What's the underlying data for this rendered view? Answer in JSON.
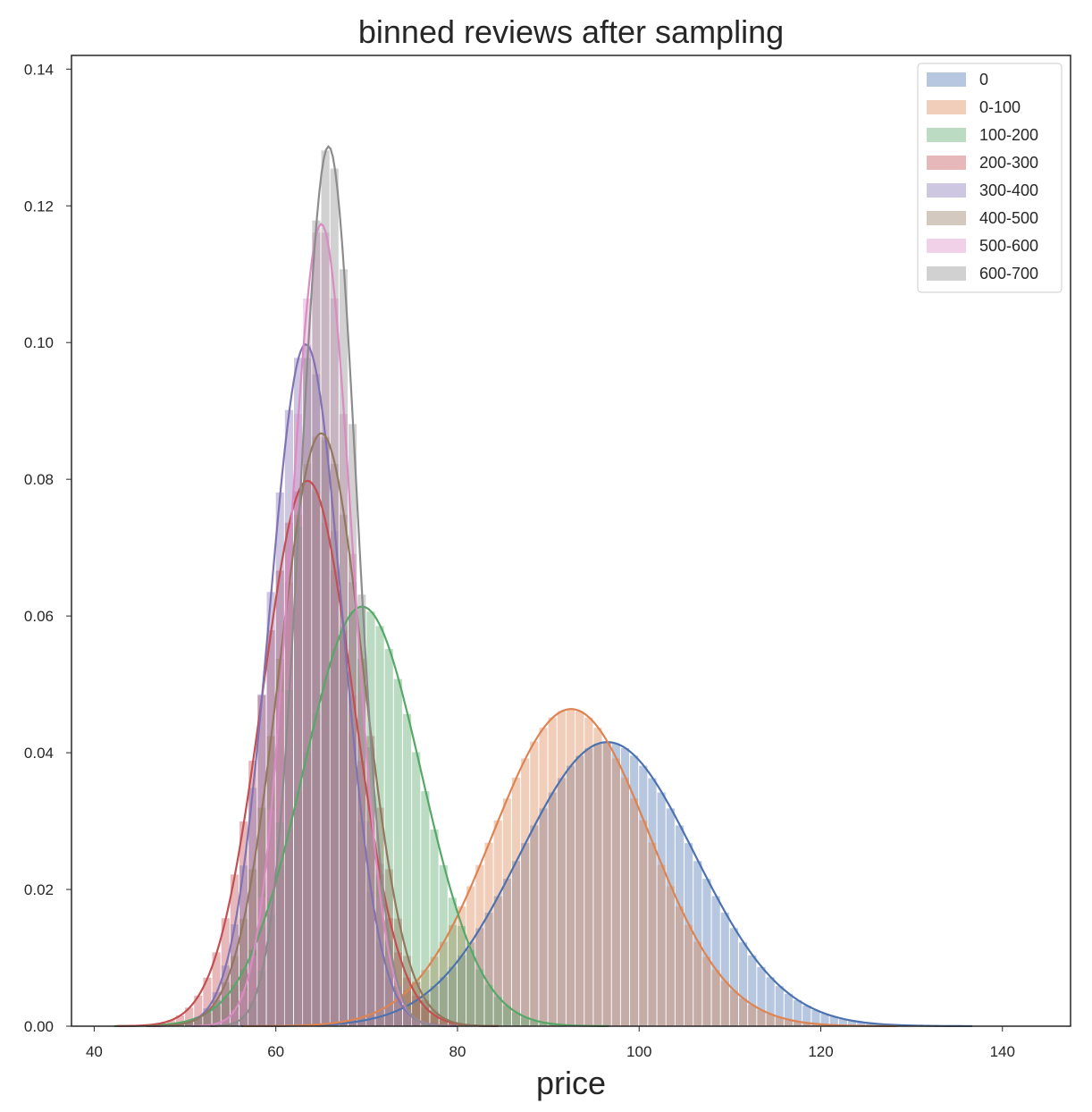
{
  "chart_data": {
    "type": "histogram",
    "title": "binned reviews after sampling",
    "xlabel": "price",
    "ylabel": "",
    "xlim": [
      37.5,
      147.5
    ],
    "ylim": [
      0,
      0.142
    ],
    "xticks": [
      40,
      60,
      80,
      100,
      120,
      140
    ],
    "yticks": [
      0.0,
      0.02,
      0.04,
      0.06,
      0.08,
      0.1,
      0.12,
      0.14
    ],
    "xtick_labels": [
      "40",
      "60",
      "80",
      "100",
      "120",
      "140"
    ],
    "ytick_labels": [
      "0.00",
      "0.02",
      "0.04",
      "0.06",
      "0.08",
      "0.10",
      "0.12",
      "0.14"
    ],
    "grid": false,
    "legend_position": "top-right",
    "bin_width": 1.0,
    "series": [
      {
        "name": "0",
        "color": "#4c72b0",
        "mean": 96.5,
        "sd": 9.6,
        "kde_peak": 0.0413
      },
      {
        "name": "0-100",
        "color": "#dd8452",
        "mean": 92.5,
        "sd": 8.6,
        "kde_peak": 0.0465
      },
      {
        "name": "100-200",
        "color": "#55a868",
        "mean": 69.5,
        "sd": 6.5,
        "kde_peak": 0.0615
      },
      {
        "name": "200-300",
        "color": "#c44e52",
        "mean": 63.5,
        "sd": 5.0,
        "kde_peak": 0.0795
      },
      {
        "name": "300-400",
        "color": "#8172b3",
        "mean": 63.3,
        "sd": 4.0,
        "kde_peak": 0.0993
      },
      {
        "name": "400-500",
        "color": "#937860",
        "mean": 65.0,
        "sd": 4.6,
        "kde_peak": 0.0865
      },
      {
        "name": "500-600",
        "color": "#da8bc3",
        "mean": 65.0,
        "sd": 3.4,
        "kde_peak": 0.1163
      },
      {
        "name": "600-700",
        "color": "#8c8c8c",
        "mean": 65.8,
        "sd": 3.1,
        "kde_peak": 0.1258
      }
    ]
  }
}
